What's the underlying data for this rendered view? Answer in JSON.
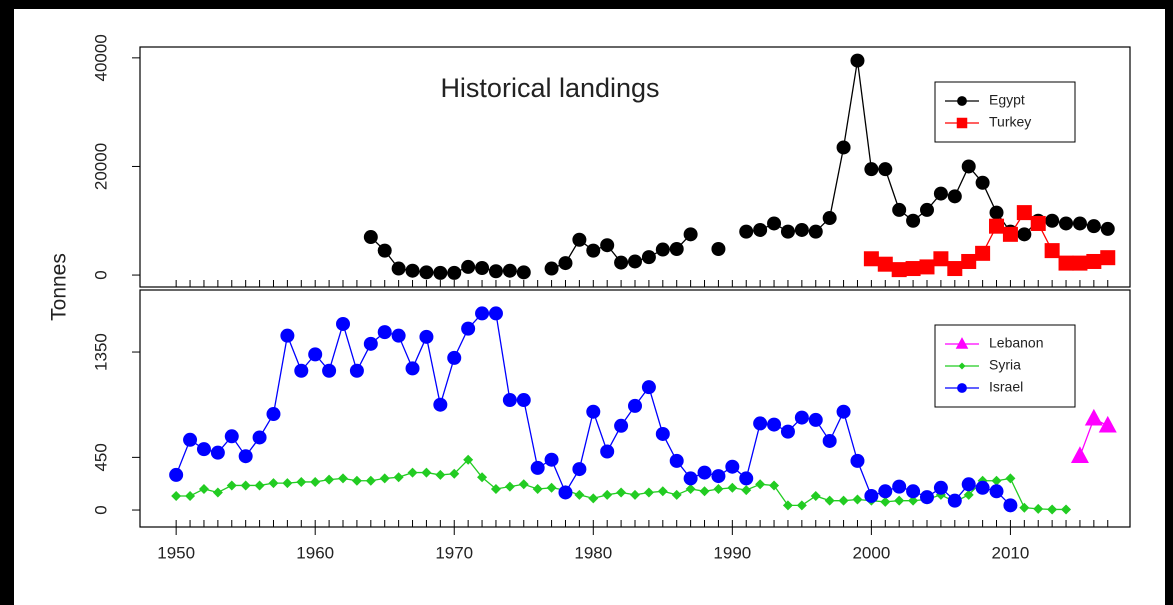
{
  "ylabel": "Tonnes",
  "chart_data": [
    {
      "type": "line",
      "title": "Historical landings",
      "x": [
        1950,
        1951,
        1952,
        1953,
        1954,
        1955,
        1956,
        1957,
        1958,
        1959,
        1960,
        1961,
        1962,
        1963,
        1964,
        1965,
        1966,
        1967,
        1968,
        1969,
        1970,
        1971,
        1972,
        1973,
        1974,
        1975,
        1976,
        1977,
        1978,
        1979,
        1980,
        1981,
        1982,
        1983,
        1984,
        1985,
        1986,
        1987,
        1988,
        1989,
        1990,
        1991,
        1992,
        1993,
        1994,
        1995,
        1996,
        1997,
        1998,
        1999,
        2000,
        2001,
        2002,
        2003,
        2004,
        2005,
        2006,
        2007,
        2008,
        2009,
        2010,
        2011,
        2012,
        2013,
        2014,
        2015,
        2016,
        2017
      ],
      "xlim": [
        1947.4,
        2018.6
      ],
      "ylim": [
        -2200,
        42000
      ],
      "yticks": [
        0,
        20000,
        40000
      ],
      "legend": "top-right",
      "series": [
        {
          "name": "Egypt",
          "color": "#000000",
          "marker": "circle",
          "values": [
            null,
            null,
            null,
            null,
            null,
            null,
            null,
            null,
            null,
            null,
            null,
            null,
            null,
            null,
            7000,
            4500,
            1200,
            800,
            500,
            400,
            400,
            1500,
            1300,
            700,
            800,
            500,
            null,
            1200,
            2200,
            6500,
            4500,
            5500,
            2300,
            2500,
            3300,
            4700,
            4800,
            7500,
            null,
            4800,
            null,
            8000,
            8300,
            9500,
            8000,
            8300,
            8000,
            10500,
            23500,
            39500,
            19500,
            19500,
            12000,
            10000,
            12000,
            15000,
            14500,
            20000,
            17000,
            11500,
            8000,
            7500,
            10000,
            10000,
            9500,
            9500,
            9000,
            8500
          ]
        },
        {
          "name": "Turkey",
          "color": "#ff0000",
          "marker": "square",
          "values": [
            null,
            null,
            null,
            null,
            null,
            null,
            null,
            null,
            null,
            null,
            null,
            null,
            null,
            null,
            null,
            null,
            null,
            null,
            null,
            null,
            null,
            null,
            null,
            null,
            null,
            null,
            null,
            null,
            null,
            null,
            null,
            null,
            null,
            null,
            null,
            null,
            null,
            null,
            null,
            null,
            null,
            null,
            null,
            null,
            null,
            null,
            null,
            null,
            null,
            null,
            3000,
            2000,
            1000,
            1200,
            1500,
            3000,
            1200,
            2500,
            4000,
            9000,
            7500,
            11500,
            9500,
            4500,
            2200,
            2200,
            2500,
            3200
          ]
        }
      ]
    },
    {
      "type": "line",
      "x": [
        1950,
        1951,
        1952,
        1953,
        1954,
        1955,
        1956,
        1957,
        1958,
        1959,
        1960,
        1961,
        1962,
        1963,
        1964,
        1965,
        1966,
        1967,
        1968,
        1969,
        1970,
        1971,
        1972,
        1973,
        1974,
        1975,
        1976,
        1977,
        1978,
        1979,
        1980,
        1981,
        1982,
        1983,
        1984,
        1985,
        1986,
        1987,
        1988,
        1989,
        1990,
        1991,
        1992,
        1993,
        1994,
        1995,
        1996,
        1997,
        1998,
        1999,
        2000,
        2001,
        2002,
        2003,
        2004,
        2005,
        2006,
        2007,
        2008,
        2009,
        2010,
        2011,
        2012,
        2013,
        2014,
        2015,
        2016,
        2017
      ],
      "xlim": [
        1947.4,
        2018.6
      ],
      "xticks": [
        1950,
        1960,
        1970,
        1980,
        1990,
        2000,
        2010
      ],
      "ylim": [
        -145,
        1880
      ],
      "yticks": [
        0,
        450,
        1350
      ],
      "legend": "top-right",
      "series": [
        {
          "name": "Lebanon",
          "color": "#ff00ff",
          "marker": "triangle",
          "values": [
            null,
            null,
            null,
            null,
            null,
            null,
            null,
            null,
            null,
            null,
            null,
            null,
            null,
            null,
            null,
            null,
            null,
            null,
            null,
            null,
            null,
            null,
            null,
            null,
            null,
            null,
            null,
            null,
            null,
            null,
            null,
            null,
            null,
            null,
            null,
            null,
            null,
            null,
            null,
            null,
            null,
            null,
            null,
            null,
            null,
            null,
            null,
            null,
            null,
            null,
            null,
            null,
            null,
            null,
            null,
            null,
            null,
            null,
            null,
            null,
            null,
            null,
            null,
            null,
            null,
            460,
            780,
            720
          ]
        },
        {
          "name": "Syria",
          "color": "#22cc22",
          "marker": "diamond",
          "values": [
            120,
            120,
            180,
            150,
            210,
            210,
            210,
            230,
            230,
            240,
            240,
            260,
            270,
            250,
            250,
            270,
            280,
            320,
            320,
            300,
            310,
            430,
            280,
            180,
            200,
            220,
            180,
            190,
            170,
            130,
            100,
            130,
            150,
            130,
            150,
            160,
            130,
            180,
            160,
            180,
            190,
            170,
            220,
            210,
            40,
            40,
            120,
            80,
            80,
            90,
            80,
            70,
            80,
            80,
            90,
            130,
            70,
            130,
            250,
            250,
            270,
            20,
            10,
            5,
            5,
            null,
            null,
            null
          ]
        },
        {
          "name": "Israel",
          "color": "#0000ff",
          "marker": "circle",
          "values": [
            300,
            600,
            520,
            490,
            630,
            460,
            620,
            820,
            1490,
            1190,
            1330,
            1190,
            1590,
            1190,
            1420,
            1520,
            1490,
            1210,
            1480,
            900,
            1300,
            1550,
            1680,
            1680,
            940,
            940,
            360,
            430,
            150,
            350,
            840,
            500,
            720,
            890,
            1050,
            650,
            420,
            270,
            320,
            290,
            370,
            270,
            740,
            730,
            670,
            790,
            770,
            590,
            840,
            420,
            120,
            160,
            200,
            160,
            110,
            190,
            80,
            220,
            190,
            160,
            40,
            null,
            null,
            null,
            null,
            null,
            null,
            null
          ]
        }
      ]
    }
  ]
}
